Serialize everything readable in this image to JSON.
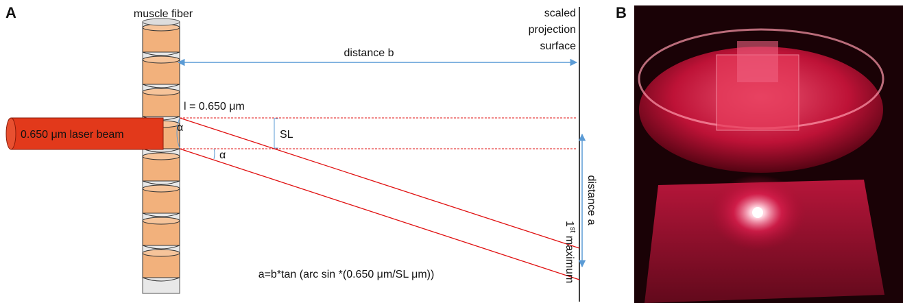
{
  "panel_a": {
    "label": "A",
    "fiber_label": "muscle fiber",
    "surface_label": [
      "scaled",
      "projection",
      "surface"
    ],
    "distance_b": "distance b",
    "wavelength": "l = 0.650 μm",
    "laser_label": "0.650 μm laser beam",
    "sl_label": "SL",
    "angle_labels": [
      "α",
      "α"
    ],
    "distance_a": "distance a",
    "first_maximum": {
      "number": "1",
      "suffix": "st",
      "word": " maximum"
    },
    "formula": "a=b*tan (arc sin *(0.650 μm/SL μm))"
  },
  "panel_b": {
    "label": "B"
  }
}
